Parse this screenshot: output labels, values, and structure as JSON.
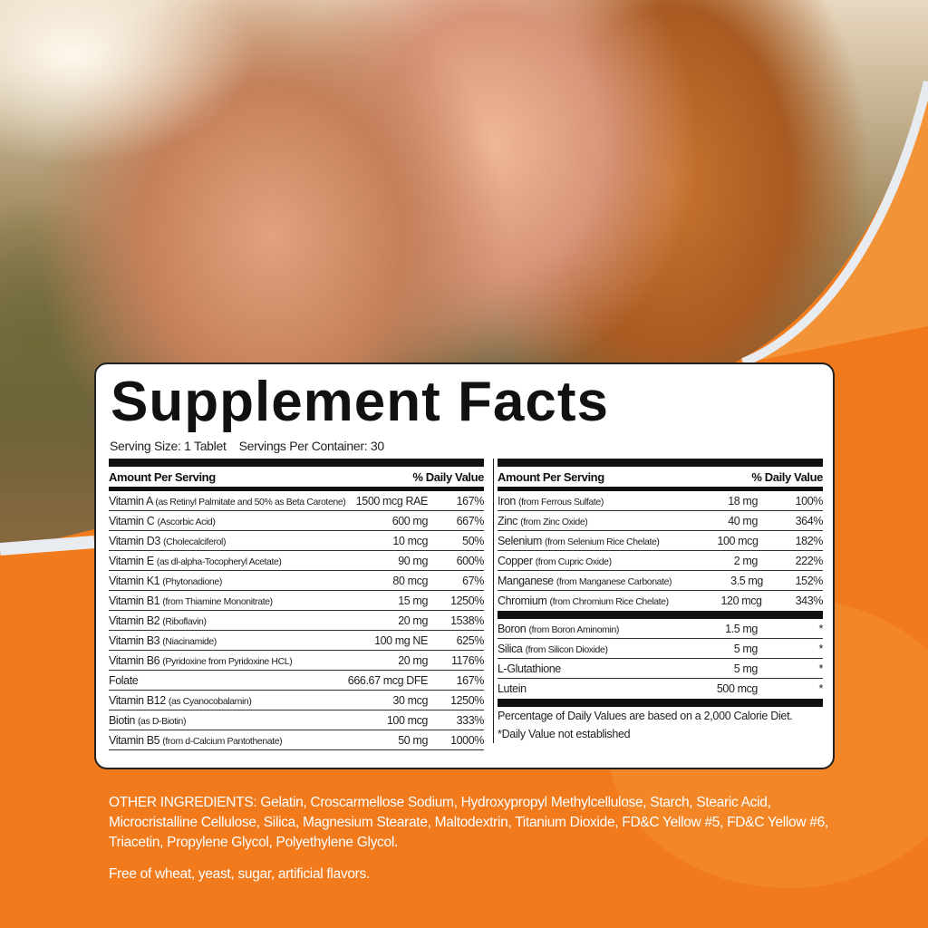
{
  "title": "Supplement Facts",
  "serving_size": "Serving Size: 1 Tablet",
  "servings_per_container": "Servings Per Container: 30",
  "header": {
    "amount": "Amount Per Serving",
    "dv": "% Daily Value"
  },
  "left_rows": [
    {
      "name": "Vitamin A",
      "source": "(as Retinyl Palmitate and 50% as Beta Carotene)",
      "amount": "1500 mcg RAE",
      "dv": "167%"
    },
    {
      "name": "Vitamin C",
      "source": "(Ascorbic Acid)",
      "amount": "600 mg",
      "dv": "667%"
    },
    {
      "name": "Vitamin D3",
      "source": "(Cholecalciferol)",
      "amount": "10 mcg",
      "dv": "50%"
    },
    {
      "name": "Vitamin E",
      "source": "(as dl-alpha-Tocopheryl Acetate)",
      "amount": "90 mg",
      "dv": "600%"
    },
    {
      "name": "Vitamin K1",
      "source": "(Phytonadione)",
      "amount": "80 mcg",
      "dv": "67%"
    },
    {
      "name": "Vitamin B1",
      "source": "(from Thiamine Mononitrate)",
      "amount": "15 mg",
      "dv": "1250%"
    },
    {
      "name": "Vitamin B2",
      "source": "(Riboflavin)",
      "amount": "20 mg",
      "dv": "1538%"
    },
    {
      "name": "Vitamin B3",
      "source": "(Niacinamide)",
      "amount": "100 mg NE",
      "dv": "625%"
    },
    {
      "name": "Vitamin B6",
      "source": "(Pyridoxine from Pyridoxine HCL)",
      "amount": "20 mg",
      "dv": "1176%"
    },
    {
      "name": "Folate",
      "source": "",
      "amount": "666.67 mcg DFE",
      "dv": "167%"
    },
    {
      "name": "Vitamin B12",
      "source": "(as Cyanocobalamin)",
      "amount": "30 mcg",
      "dv": "1250%"
    },
    {
      "name": "Biotin",
      "source": "(as D-Biotin)",
      "amount": "100 mcg",
      "dv": "333%"
    },
    {
      "name": "Vitamin B5",
      "source": "(from d-Calcium Pantothenate)",
      "amount": "50 mg",
      "dv": "1000%"
    }
  ],
  "right_rows": [
    {
      "name": "Iron",
      "source": "(from Ferrous Sulfate)",
      "amount": "18 mg",
      "dv": "100%"
    },
    {
      "name": "Zinc",
      "source": "(from Zinc Oxide)",
      "amount": "40 mg",
      "dv": "364%"
    },
    {
      "name": "Selenium",
      "source": "(from Selenium Rice Chelate)",
      "amount": "100 mcg",
      "dv": "182%"
    },
    {
      "name": "Copper",
      "source": "(from Cupric Oxide)",
      "amount": "2 mg",
      "dv": "222%"
    },
    {
      "name": "Manganese",
      "source": "(from Manganese Carbonate)",
      "amount": "3.5 mg",
      "dv": "152%"
    },
    {
      "name": "Chromium",
      "source": "(from Chromium Rice Chelate)",
      "amount": "120 mcg",
      "dv": "343%"
    }
  ],
  "right_rows2": [
    {
      "name": "Boron",
      "source": "(from Boron Aminomin)",
      "amount": "1.5 mg",
      "dv": "*"
    },
    {
      "name": "Silica",
      "source": "(from Silicon Dioxide)",
      "amount": "5 mg",
      "dv": "*"
    },
    {
      "name": "L-Glutathione",
      "source": "",
      "amount": "5 mg",
      "dv": "*"
    },
    {
      "name": "Lutein",
      "source": "",
      "amount": "500 mcg",
      "dv": "*"
    }
  ],
  "footnote1": "Percentage of Daily Values are based on a 2,000 Calorie Diet.",
  "footnote2": "*Daily Value not established",
  "other_ingredients": "OTHER INGREDIENTS: Gelatin, Croscarmellose Sodium, Hydroxypropyl Methylcellulose, Starch, Stearic Acid, Microcristalline Cellulose, Silica, Magnesium Stearate, Maltodextrin, Titanium Dioxide, FD&C Yellow #5, FD&C Yellow #6, Triacetin, Propylene Glycol, Polyethylene Glycol.",
  "free_of": "Free of wheat, yeast, sugar, artificial flavors.",
  "colors": {
    "orange": "#f07a1c",
    "panel": "#ffffff",
    "text": "#222222"
  }
}
